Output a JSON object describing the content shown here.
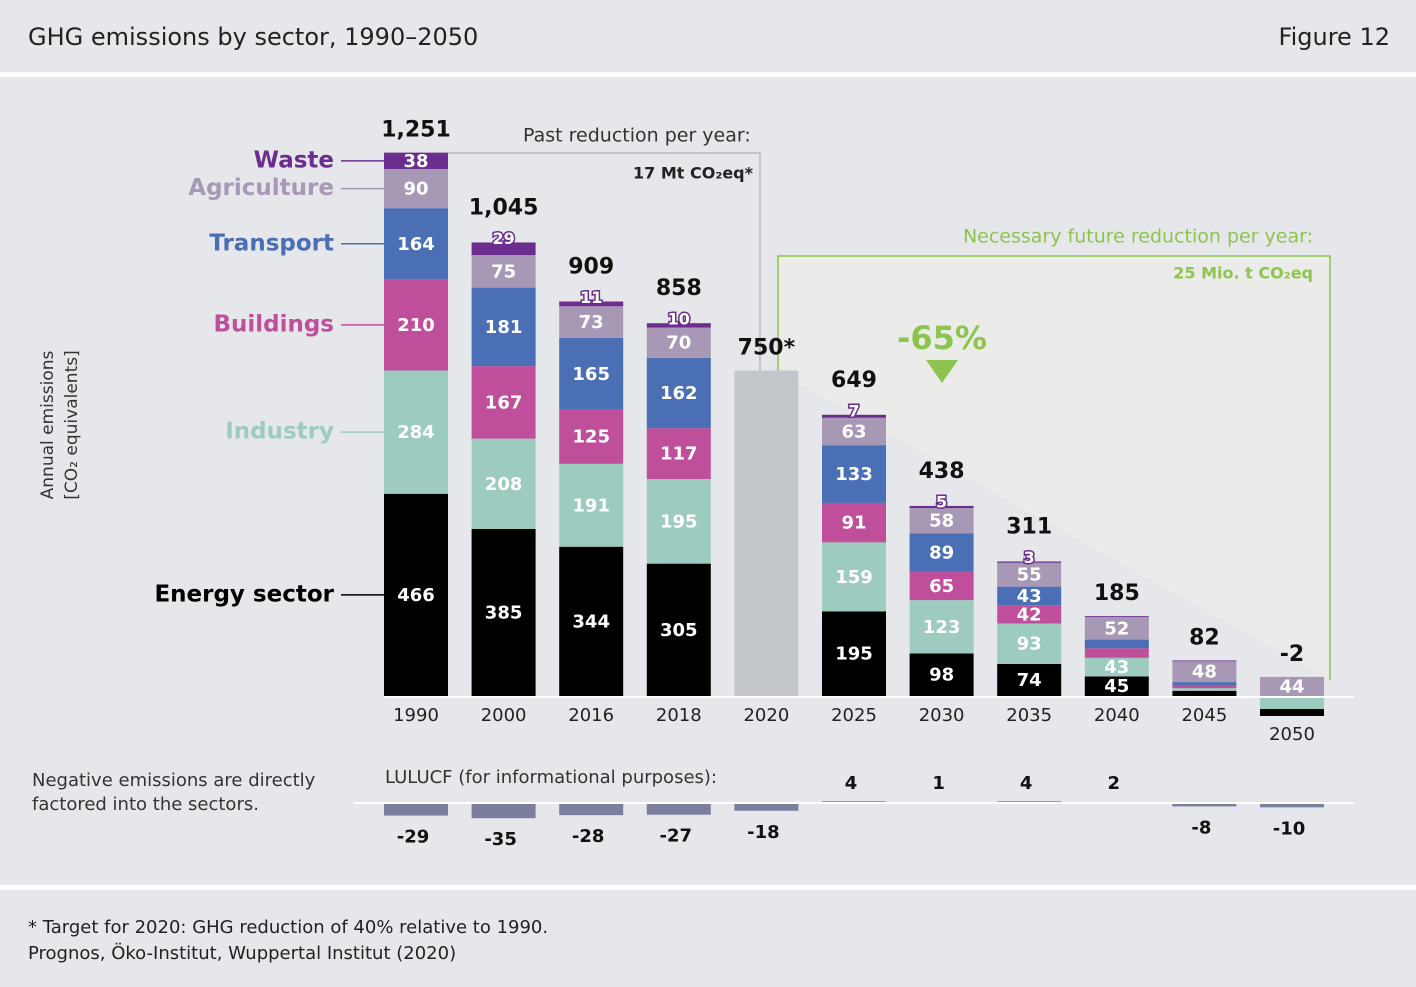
{
  "header": {
    "title": "GHG emissions by sector, 1990–2050",
    "figure": "Figure 12"
  },
  "chart_data": {
    "type": "stacked_bar",
    "y_axis_label": [
      "Annual emissions",
      "[CO₂ equivalents]"
    ],
    "categories": [
      "1990",
      "2000",
      "2016",
      "2018",
      "2020",
      "2025",
      "2030",
      "2035",
      "2040",
      "2045",
      "2050"
    ],
    "series": [
      {
        "name": "Energy sector",
        "color": "#000000",
        "values": [
          466,
          385,
          344,
          305,
          null,
          195,
          98,
          74,
          45,
          12,
          -16
        ],
        "value_labels": [
          "466",
          "385",
          "344",
          "305",
          null,
          "195",
          "98",
          "74",
          "45",
          null,
          null
        ]
      },
      {
        "name": "Industry",
        "color": "#9ecbbf",
        "values": [
          284,
          208,
          191,
          195,
          null,
          159,
          123,
          93,
          43,
          6,
          -30
        ],
        "value_labels": [
          "284",
          "208",
          "191",
          "195",
          null,
          "159",
          "123",
          "93",
          "43",
          null,
          null
        ]
      },
      {
        "name": "Buildings",
        "color": "#c04f9b",
        "values": [
          210,
          167,
          125,
          117,
          null,
          91,
          65,
          42,
          22,
          6,
          0
        ],
        "value_labels": [
          "210",
          "167",
          "125",
          "117",
          null,
          "91",
          "65",
          "42",
          null,
          null,
          null
        ]
      },
      {
        "name": "Transport",
        "color": "#4a6fb5",
        "values": [
          164,
          181,
          165,
          162,
          null,
          133,
          89,
          43,
          20,
          8,
          0
        ],
        "value_labels": [
          "164",
          "181",
          "165",
          "162",
          null,
          "133",
          "89",
          "43",
          null,
          null,
          null
        ]
      },
      {
        "name": "Agriculture",
        "color": "#a799b5",
        "values": [
          90,
          75,
          73,
          70,
          null,
          63,
          58,
          55,
          52,
          48,
          44
        ],
        "value_labels": [
          "90",
          "75",
          "73",
          "70",
          null,
          "63",
          "58",
          "55",
          "52",
          "48",
          "44"
        ]
      },
      {
        "name": "Waste",
        "color": "#6b2e8e",
        "values": [
          38,
          29,
          11,
          10,
          null,
          7,
          5,
          3,
          2,
          2,
          0
        ],
        "value_labels": [
          "38",
          "29",
          "11",
          "10",
          null,
          "7",
          "5",
          "3",
          null,
          null,
          null
        ]
      }
    ],
    "totals": {
      "values": [
        1251,
        1045,
        909,
        858,
        750,
        649,
        438,
        311,
        185,
        82,
        -2
      ],
      "value_labels": [
        "1,251",
        "1,045",
        "909",
        "858",
        "750*",
        "649",
        "438",
        "311",
        "185",
        "82",
        "-2"
      ],
      "target_color": "#c3c7cc"
    },
    "annotations": {
      "past": "Past reduction per year:",
      "past_value": "17 Mt CO₂eq*",
      "future": "Necessary future reduction per year:",
      "future_value": "25 Mio. t CO₂eq",
      "reduction": "-65%",
      "green": "#8dc44f"
    },
    "lulucf": {
      "label": "LULUCF (for informational purposes):",
      "color": "#7a7f9e",
      "values": [
        -29,
        -35,
        -28,
        -27,
        -18,
        4,
        1,
        4,
        2,
        -8,
        -10
      ]
    },
    "negative_note": [
      "Negative emissions are directly",
      "factored into the sectors."
    ]
  },
  "footer": {
    "lines": [
      "* Target for 2020: GHG reduction of 40% relative to 1990.",
      "Prognos, Öko-Institut, Wuppertal Institut (2020)"
    ]
  }
}
